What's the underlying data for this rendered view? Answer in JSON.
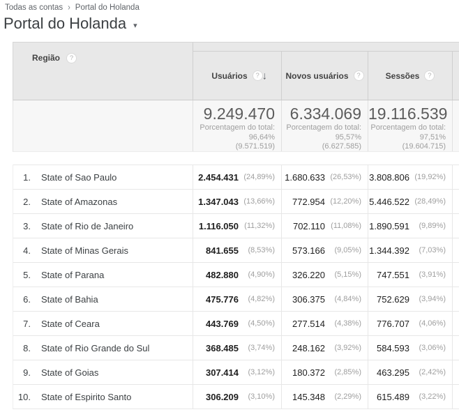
{
  "breadcrumb": {
    "account": "Todas as contas",
    "separator": "›",
    "property": "Portal do Holanda"
  },
  "header": {
    "title": "Portal do Holanda",
    "caret": "▾"
  },
  "table": {
    "dimension": {
      "label": "Região",
      "help": "?"
    },
    "columns": [
      {
        "label": "Usuários",
        "help": "?",
        "sort": "↓",
        "total": "9.249.470",
        "total_pct": "Porcentagem do total: 96,64%",
        "total_abs": "(9.571.519)"
      },
      {
        "label": "Novos usuários",
        "help": "?",
        "total": "6.334.069",
        "total_pct": "Porcentagem do total: 95,57%",
        "total_abs": "(6.627.585)"
      },
      {
        "label": "Sessões",
        "help": "?",
        "total": "19.116.539",
        "total_pct": "Porcentagem do total: 97,51%",
        "total_abs": "(19.604.715)"
      }
    ],
    "rows": [
      {
        "index": "1.",
        "region": "State of Sao Paulo",
        "users": "2.454.431",
        "users_pct": "(24,89%)",
        "new_users": "1.680.633",
        "new_users_pct": "(26,53%)",
        "sessions": "3.808.806",
        "sessions_pct": "(19,92%)"
      },
      {
        "index": "2.",
        "region": "State of Amazonas",
        "users": "1.347.043",
        "users_pct": "(13,66%)",
        "new_users": "772.954",
        "new_users_pct": "(12,20%)",
        "sessions": "5.446.522",
        "sessions_pct": "(28,49%)"
      },
      {
        "index": "3.",
        "region": "State of Rio de Janeiro",
        "users": "1.116.050",
        "users_pct": "(11,32%)",
        "new_users": "702.110",
        "new_users_pct": "(11,08%)",
        "sessions": "1.890.591",
        "sessions_pct": "(9,89%)"
      },
      {
        "index": "4.",
        "region": "State of Minas Gerais",
        "users": "841.655",
        "users_pct": "(8,53%)",
        "new_users": "573.166",
        "new_users_pct": "(9,05%)",
        "sessions": "1.344.392",
        "sessions_pct": "(7,03%)"
      },
      {
        "index": "5.",
        "region": "State of Parana",
        "users": "482.880",
        "users_pct": "(4,90%)",
        "new_users": "326.220",
        "new_users_pct": "(5,15%)",
        "sessions": "747.551",
        "sessions_pct": "(3,91%)"
      },
      {
        "index": "6.",
        "region": "State of Bahia",
        "users": "475.776",
        "users_pct": "(4,82%)",
        "new_users": "306.375",
        "new_users_pct": "(4,84%)",
        "sessions": "752.629",
        "sessions_pct": "(3,94%)"
      },
      {
        "index": "7.",
        "region": "State of Ceara",
        "users": "443.769",
        "users_pct": "(4,50%)",
        "new_users": "277.514",
        "new_users_pct": "(4,38%)",
        "sessions": "776.707",
        "sessions_pct": "(4,06%)"
      },
      {
        "index": "8.",
        "region": "State of Rio Grande do Sul",
        "users": "368.485",
        "users_pct": "(3,74%)",
        "new_users": "248.162",
        "new_users_pct": "(3,92%)",
        "sessions": "584.593",
        "sessions_pct": "(3,06%)"
      },
      {
        "index": "9.",
        "region": "State of Goias",
        "users": "307.414",
        "users_pct": "(3,12%)",
        "new_users": "180.372",
        "new_users_pct": "(2,85%)",
        "sessions": "463.295",
        "sessions_pct": "(2,42%)"
      },
      {
        "index": "10.",
        "region": "State of Espirito Santo",
        "users": "306.209",
        "users_pct": "(3,10%)",
        "new_users": "145.348",
        "new_users_pct": "(2,29%)",
        "sessions": "615.489",
        "sessions_pct": "(3,22%)"
      }
    ]
  },
  "colors": {
    "header_bg": "#e8e8e8",
    "totals_bg": "#f7f7f7",
    "border": "#d6d6d6",
    "row_border": "#e7e7e7",
    "value_text": "#1e1e1e",
    "muted_text": "#9e9e9e",
    "big_number_text": "#5c5c5c"
  }
}
